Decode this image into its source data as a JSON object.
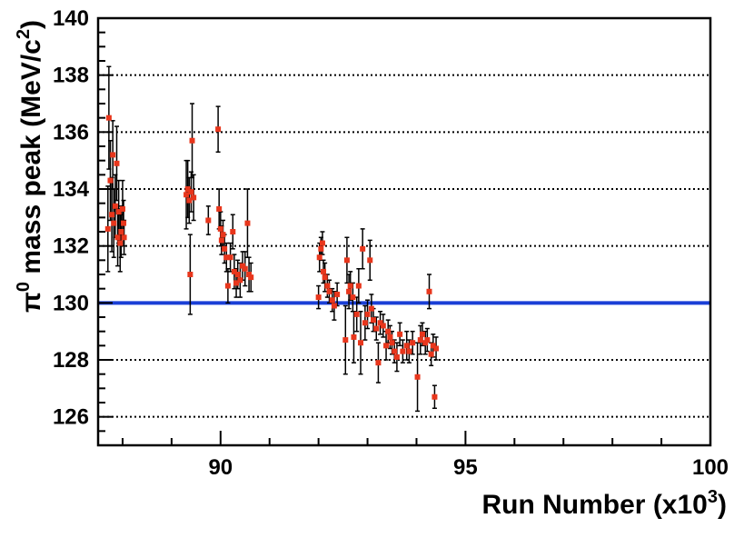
{
  "chart_data": {
    "type": "scatter",
    "title": "",
    "xlabel_main": "Run Number (x10",
    "xlabel_sup": "3",
    "xlabel_end": ")",
    "ylabel_pi": "π",
    "ylabel_sup0": "0",
    "ylabel_mid": " mass peak (MeV/c",
    "ylabel_sup2": "2",
    "ylabel_end": ")",
    "xlim": [
      87.5,
      100
    ],
    "ylim": [
      125,
      140
    ],
    "x_ticks": [
      90,
      95,
      100
    ],
    "x_tick_labels": [
      "90",
      "95",
      "100"
    ],
    "y_ticks": [
      126,
      128,
      130,
      132,
      134,
      136,
      138,
      140
    ],
    "y_tick_labels": [
      "126",
      "128",
      "130",
      "132",
      "134",
      "136",
      "138",
      "140"
    ],
    "grid": "horizontal dotted",
    "reference_line": {
      "y": 130.0,
      "color": "#1a3fd6"
    },
    "marker_color": "#e8361c",
    "errorbar_color": "#000000",
    "points": [
      [
        87.72,
        136.5,
        1.8
      ],
      [
        87.75,
        134.3,
        1.4
      ],
      [
        87.78,
        133.1,
        1.3
      ],
      [
        87.7,
        132.6,
        1.5
      ],
      [
        87.8,
        135.2,
        1.2
      ],
      [
        87.82,
        132.8,
        1.2
      ],
      [
        87.85,
        133.4,
        1.1
      ],
      [
        87.88,
        134.9,
        1.3
      ],
      [
        87.9,
        132.3,
        1.0
      ],
      [
        87.92,
        133.2,
        1.1
      ],
      [
        87.95,
        132.1,
        1.0
      ],
      [
        87.97,
        132.5,
        0.9
      ],
      [
        88.0,
        133.3,
        1.0
      ],
      [
        88.02,
        132.8,
        0.8
      ],
      [
        88.03,
        132.3,
        0.6
      ],
      [
        89.3,
        133.8,
        1.2
      ],
      [
        89.33,
        134.0,
        1.0
      ],
      [
        89.36,
        133.6,
        0.8
      ],
      [
        89.4,
        133.9,
        0.7
      ],
      [
        89.38,
        131.0,
        1.4
      ],
      [
        89.42,
        135.7,
        1.3
      ],
      [
        89.45,
        133.7,
        0.8
      ],
      [
        89.75,
        132.9,
        0.5
      ],
      [
        89.95,
        136.1,
        0.8
      ],
      [
        89.97,
        133.3,
        0.7
      ],
      [
        90.0,
        132.6,
        0.6
      ],
      [
        90.02,
        132.2,
        0.5
      ],
      [
        90.05,
        132.4,
        0.5
      ],
      [
        90.08,
        131.9,
        0.5
      ],
      [
        90.12,
        131.6,
        0.5
      ],
      [
        90.15,
        130.6,
        0.6
      ],
      [
        90.2,
        131.6,
        0.5
      ],
      [
        90.25,
        132.5,
        0.6
      ],
      [
        90.28,
        131.1,
        0.6
      ],
      [
        90.32,
        130.7,
        0.5
      ],
      [
        90.35,
        131.0,
        0.5
      ],
      [
        90.4,
        130.8,
        0.6
      ],
      [
        90.45,
        131.3,
        0.5
      ],
      [
        90.5,
        131.2,
        0.6
      ],
      [
        90.55,
        132.8,
        1.2
      ],
      [
        90.58,
        131.0,
        0.6
      ],
      [
        90.62,
        130.9,
        0.5
      ],
      [
        92.0,
        130.2,
        0.4
      ],
      [
        92.02,
        131.6,
        0.5
      ],
      [
        92.05,
        131.9,
        0.4
      ],
      [
        92.08,
        132.1,
        0.4
      ],
      [
        92.1,
        131.1,
        0.4
      ],
      [
        92.13,
        130.9,
        0.5
      ],
      [
        92.18,
        130.6,
        0.4
      ],
      [
        92.22,
        130.4,
        0.4
      ],
      [
        92.28,
        130.1,
        0.4
      ],
      [
        92.32,
        129.9,
        0.5
      ],
      [
        92.38,
        130.3,
        0.4
      ],
      [
        92.55,
        128.7,
        1.2
      ],
      [
        92.58,
        131.5,
        0.8
      ],
      [
        92.62,
        130.4,
        0.6
      ],
      [
        92.65,
        130.6,
        0.5
      ],
      [
        92.7,
        130.2,
        0.5
      ],
      [
        92.72,
        128.8,
        0.9
      ],
      [
        92.78,
        129.6,
        0.6
      ],
      [
        92.82,
        130.6,
        0.6
      ],
      [
        92.86,
        128.6,
        1.1
      ],
      [
        92.9,
        131.9,
        0.7
      ],
      [
        92.95,
        129.3,
        0.6
      ],
      [
        93.0,
        129.6,
        0.5
      ],
      [
        93.05,
        131.5,
        0.7
      ],
      [
        93.08,
        129.8,
        0.5
      ],
      [
        93.12,
        129.4,
        0.4
      ],
      [
        93.18,
        129.1,
        0.4
      ],
      [
        93.22,
        127.9,
        0.7
      ],
      [
        93.26,
        129.3,
        0.4
      ],
      [
        93.32,
        129.2,
        0.4
      ],
      [
        93.38,
        128.5,
        0.5
      ],
      [
        93.42,
        129.0,
        0.4
      ],
      [
        93.46,
        128.8,
        0.4
      ],
      [
        93.5,
        128.6,
        0.4
      ],
      [
        93.55,
        128.3,
        0.4
      ],
      [
        93.6,
        128.1,
        0.5
      ],
      [
        93.66,
        128.9,
        0.4
      ],
      [
        93.72,
        128.3,
        0.4
      ],
      [
        93.8,
        128.5,
        0.5
      ],
      [
        93.85,
        128.3,
        0.4
      ],
      [
        93.92,
        128.6,
        0.4
      ],
      [
        94.02,
        127.4,
        1.2
      ],
      [
        94.08,
        128.7,
        0.5
      ],
      [
        94.12,
        128.9,
        0.4
      ],
      [
        94.18,
        128.6,
        0.4
      ],
      [
        94.22,
        128.7,
        0.4
      ],
      [
        94.26,
        130.4,
        0.6
      ],
      [
        94.3,
        128.2,
        0.4
      ],
      [
        94.34,
        128.5,
        0.4
      ],
      [
        94.37,
        126.7,
        0.4
      ],
      [
        94.4,
        128.4,
        0.4
      ]
    ]
  }
}
